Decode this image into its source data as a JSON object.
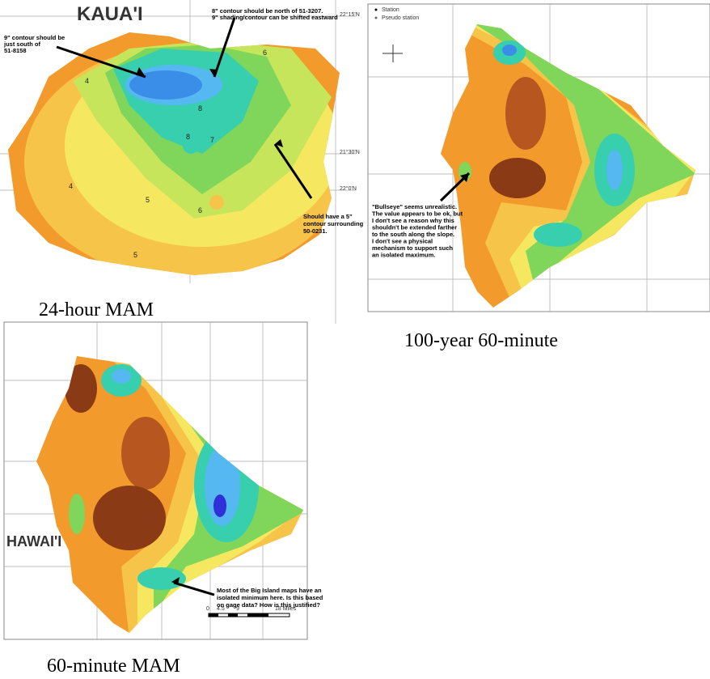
{
  "panels": [
    {
      "title": "KAUA'I",
      "caption": "24-hour MAM",
      "lat_labels": [
        "22°15'N",
        "21°30'N",
        "22°0'N"
      ],
      "contour_labels": [
        "6",
        "4",
        "8",
        "8",
        "7",
        "4",
        "5",
        "6",
        "5"
      ],
      "annotations": [
        [
          "9\" contour should be",
          "just south of",
          "51-8158"
        ],
        [
          "8\" contour should be north of 51-3207.",
          "9\" shading/contour can be shifted eastward"
        ],
        [
          "Should have a 5\"",
          "contour surrounding",
          "50-0231."
        ]
      ]
    },
    {
      "caption": "100-year 60-minute",
      "legend": [
        "Station",
        "Pseudo station"
      ],
      "annotations": [
        [
          "\"Bullseye\" seems unrealistic.",
          "The value appears to be ok, but",
          "I don't see a reason why this",
          "shouldn't be extended farther",
          "to the south along the slope.",
          "I don't see a physical",
          "mechanism to support such",
          "an isolated maximum."
        ]
      ]
    },
    {
      "title": "HAWAI'I",
      "caption": "60-minute MAM",
      "scale": [
        "0",
        "4.5",
        "9",
        "18 Miles"
      ],
      "annotations": [
        [
          "Most of the Big Island maps have an",
          "isolated minimum here.  Is this based",
          "on gage data?  How is this justified?"
        ]
      ]
    }
  ]
}
